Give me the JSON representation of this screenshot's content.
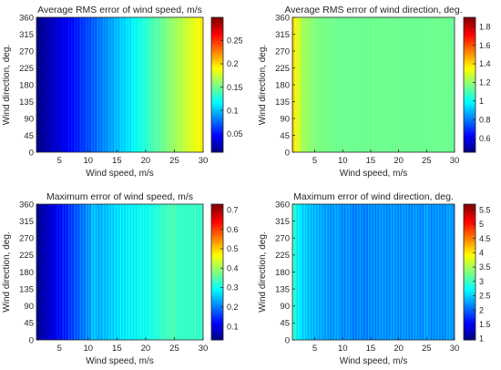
{
  "chart_data": [
    {
      "type": "heatmap",
      "title": "Average RMS error of wind speed, m/s",
      "xlabel": "Wind speed, m/s",
      "ylabel": "Wind direction, deg.",
      "xlim": [
        1,
        30
      ],
      "ylim": [
        0,
        360
      ],
      "xticks": [
        "5",
        "10",
        "15",
        "20",
        "25",
        "30"
      ],
      "yticks": [
        "0",
        "45",
        "90",
        "135",
        "180",
        "225",
        "270",
        "315",
        "360"
      ],
      "colorbar": {
        "clim": [
          0.01,
          0.3
        ],
        "ticks": [
          "0.05",
          "0.1",
          "0.15",
          "0.2",
          "0.25"
        ]
      },
      "colormap": "jet",
      "stripe_amplitude": 0.004,
      "x": [
        1,
        2,
        3,
        4,
        5,
        6,
        7,
        8,
        9,
        10,
        11,
        12,
        13,
        14,
        15,
        16,
        17,
        18,
        19,
        20,
        21,
        22,
        23,
        24,
        25,
        26,
        27,
        28,
        29,
        30
      ],
      "values": [
        0.011,
        0.017,
        0.024,
        0.03,
        0.036,
        0.043,
        0.049,
        0.055,
        0.062,
        0.068,
        0.074,
        0.081,
        0.087,
        0.093,
        0.1,
        0.106,
        0.112,
        0.119,
        0.125,
        0.131,
        0.138,
        0.144,
        0.15,
        0.157,
        0.163,
        0.17,
        0.176,
        0.182,
        0.189,
        0.195
      ]
    },
    {
      "type": "heatmap",
      "title": "Average RMS error of wind direction, deg.",
      "xlabel": "Wind speed, m/s",
      "ylabel": "Wind direction, deg.",
      "xlim": [
        1,
        30
      ],
      "ylim": [
        0,
        360
      ],
      "xticks": [
        "5",
        "10",
        "15",
        "20",
        "25",
        "30"
      ],
      "yticks": [
        "0",
        "45",
        "90",
        "135",
        "180",
        "225",
        "270",
        "315",
        "360"
      ],
      "colorbar": {
        "clim": [
          0.45,
          1.9
        ],
        "ticks": [
          "0.6",
          "0.8",
          "1",
          "1.2",
          "1.4",
          "1.6",
          "1.8"
        ]
      },
      "colormap": "jet",
      "stripe_amplitude": 0.03,
      "x": [
        1,
        2,
        3,
        4,
        5,
        6,
        7,
        8,
        9,
        10,
        11,
        12,
        13,
        14,
        15,
        16,
        17,
        18,
        19,
        20,
        21,
        22,
        23,
        24,
        25,
        26,
        27,
        28,
        29,
        30
      ],
      "values": [
        1.42,
        1.3,
        1.23,
        1.2,
        1.18,
        1.17,
        1.16,
        1.16,
        1.15,
        1.15,
        1.15,
        1.15,
        1.15,
        1.15,
        1.15,
        1.15,
        1.15,
        1.15,
        1.15,
        1.15,
        1.15,
        1.15,
        1.15,
        1.15,
        1.15,
        1.15,
        1.15,
        1.15,
        1.15,
        1.15
      ]
    },
    {
      "type": "heatmap",
      "title": "Maximum error of wind speed, m/s",
      "xlabel": "Wind speed, m/s",
      "ylabel": "Wind direction, deg.",
      "xlim": [
        1,
        30
      ],
      "ylim": [
        0,
        360
      ],
      "xticks": [
        "5",
        "10",
        "15",
        "20",
        "25",
        "30"
      ],
      "yticks": [
        "0",
        "45",
        "90",
        "135",
        "180",
        "225",
        "270",
        "315",
        "360"
      ],
      "colorbar": {
        "clim": [
          0.03,
          0.73
        ],
        "ticks": [
          "0.1",
          "0.2",
          "0.3",
          "0.4",
          "0.5",
          "0.6",
          "0.7"
        ]
      },
      "colormap": "jet",
      "stripe_amplitude": 0.015,
      "x": [
        1,
        2,
        3,
        4,
        5,
        6,
        7,
        8,
        9,
        10,
        11,
        12,
        13,
        14,
        15,
        16,
        17,
        18,
        19,
        20,
        21,
        22,
        23,
        24,
        25,
        26,
        27,
        28,
        29,
        30
      ],
      "values": [
        0.04,
        0.06,
        0.08,
        0.1,
        0.12,
        0.14,
        0.16,
        0.18,
        0.2,
        0.22,
        0.25,
        0.24,
        0.25,
        0.26,
        0.27,
        0.28,
        0.29,
        0.29,
        0.3,
        0.3,
        0.31,
        0.32,
        0.33,
        0.34,
        0.34,
        0.33,
        0.33,
        0.33,
        0.33,
        0.33
      ]
    },
    {
      "type": "heatmap",
      "title": "Maximum error of wind direction, deg.",
      "xlabel": "Wind speed, m/s",
      "ylabel": "Wind direction, deg.",
      "xlim": [
        1,
        30
      ],
      "ylim": [
        0,
        360
      ],
      "xticks": [
        "5",
        "10",
        "15",
        "20",
        "25",
        "30"
      ],
      "yticks": [
        "0",
        "45",
        "90",
        "135",
        "180",
        "225",
        "270",
        "315",
        "360"
      ],
      "colorbar": {
        "clim": [
          0.95,
          5.7
        ],
        "ticks": [
          "1",
          "1.5",
          "2",
          "2.5",
          "3",
          "3.5",
          "4",
          "4.5",
          "5",
          "5.5"
        ]
      },
      "colormap": "jet",
      "stripe_amplitude": 0.12,
      "x": [
        1,
        2,
        3,
        4,
        5,
        6,
        7,
        8,
        9,
        10,
        11,
        12,
        13,
        14,
        15,
        16,
        17,
        18,
        19,
        20,
        21,
        22,
        23,
        24,
        25,
        26,
        27,
        28,
        29,
        30
      ],
      "values": [
        3.0,
        2.7,
        2.55,
        2.45,
        2.4,
        2.35,
        2.3,
        2.25,
        2.3,
        2.2,
        2.25,
        2.15,
        2.2,
        2.15,
        2.2,
        2.2,
        2.25,
        2.2,
        2.25,
        2.2,
        2.25,
        2.2,
        2.25,
        2.2,
        2.3,
        2.2,
        2.25,
        2.2,
        2.3,
        2.2
      ]
    }
  ]
}
